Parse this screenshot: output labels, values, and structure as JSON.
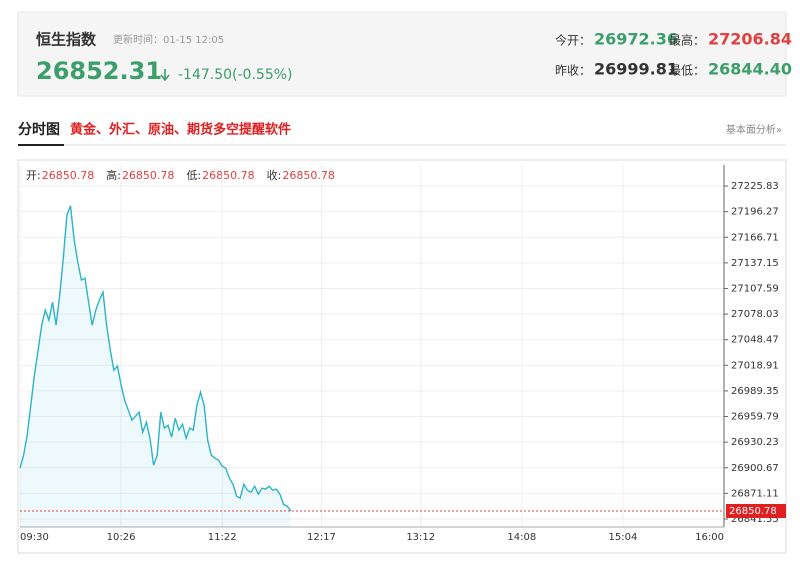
{
  "header": {
    "title": "恒生指数",
    "update_time": "更新时间：01-15 12:05",
    "price": "26852.31",
    "change": "-147.50(-0.55%)",
    "stats": [
      {
        "label": "今开：",
        "value": "26972.36"
      },
      {
        "label": "最高：",
        "value": "27206.84"
      },
      {
        "label": "昨收：",
        "value": "26999.81"
      },
      {
        "label": "最低：",
        "value": "26844.40"
      }
    ]
  },
  "section": {
    "title": "分时图",
    "promo": "黄金、外汇、原油、期货多空提醒软件",
    "link": "基本面分析»"
  },
  "chart_data": {
    "type": "line",
    "info": [
      {
        "label": "开:",
        "value": 26850.78
      },
      {
        "label": "高:",
        "value": 26850.78
      },
      {
        "label": "低:",
        "value": 26850.78
      },
      {
        "label": "收:",
        "value": 26850.78
      }
    ],
    "x": [
      "09:30",
      "09:32",
      "09:34",
      "09:36",
      "09:38",
      "09:40",
      "09:42",
      "09:44",
      "09:46",
      "09:48",
      "09:50",
      "09:52",
      "09:54",
      "09:56",
      "09:58",
      "10:00",
      "10:02",
      "10:04",
      "10:06",
      "10:08",
      "10:10",
      "10:12",
      "10:14",
      "10:16",
      "10:18",
      "10:20",
      "10:22",
      "10:24",
      "10:26",
      "10:28",
      "10:30",
      "10:32",
      "10:34",
      "10:36",
      "10:38",
      "10:40",
      "10:42",
      "10:44",
      "10:46",
      "10:48",
      "10:50",
      "10:52",
      "10:54",
      "10:56",
      "10:58",
      "11:00",
      "11:02",
      "11:04",
      "11:06",
      "11:08",
      "11:10",
      "11:12",
      "11:14",
      "11:16",
      "11:18",
      "11:20",
      "11:22",
      "11:24",
      "11:26",
      "11:28",
      "11:30",
      "11:32",
      "11:34",
      "11:36",
      "11:38",
      "11:40",
      "11:42",
      "11:44",
      "11:46",
      "11:48",
      "11:50",
      "11:52",
      "11:54",
      "11:56",
      "11:58",
      "12:00"
    ],
    "series": [
      {
        "name": "恒生指数",
        "color": "#2bb3c8",
        "values": [
          26900.2,
          26915.2,
          26938.3,
          26972.9,
          27007.6,
          27036.4,
          27065.3,
          27082.6,
          27071.1,
          27091.9,
          27065.3,
          27099.9,
          27142.7,
          27192.3,
          27203.0,
          27163.4,
          27138.0,
          27117.3,
          27119.6,
          27091.9,
          27065.3,
          27082.6,
          27094.2,
          27103.4,
          27065.3,
          27036.4,
          27013.3,
          27018.0,
          26996.0,
          26978.7,
          26967.1,
          26955.6,
          26960.2,
          26964.8,
          26941.7,
          26953.3,
          26934.8,
          26903.6,
          26915.2,
          26964.8,
          26946.4,
          26949.8,
          26936.0,
          26957.9,
          26944.1,
          26951.0,
          26934.8,
          26946.4,
          26944.1,
          26972.9,
          26987.9,
          26972.9,
          26932.5,
          26915.2,
          26911.7,
          26909.4,
          26902.5,
          26900.2,
          26888.6,
          26881.7,
          26867.8,
          26865.5,
          26881.7,
          26874.8,
          26872.5,
          26879.4,
          26870.2,
          26877.1,
          26875.9,
          26879.4,
          26874.8,
          26875.9,
          26870.2,
          26858.6,
          26856.3,
          26850.78
        ]
      }
    ],
    "xlim": [
      "09:30",
      "16:00"
    ],
    "xticks": [
      "09:30",
      "10:26",
      "11:22",
      "12:17",
      "13:12",
      "14:08",
      "15:04",
      "16:00"
    ],
    "ylim": [
      26832.3,
      27250.1
    ],
    "yticks": [
      27225.83,
      27196.27,
      27166.71,
      27137.15,
      27107.59,
      27078.03,
      27048.47,
      27018.91,
      26989.35,
      26959.79,
      26930.23,
      26900.67,
      26871.11,
      26841.55
    ],
    "grid": true
  }
}
